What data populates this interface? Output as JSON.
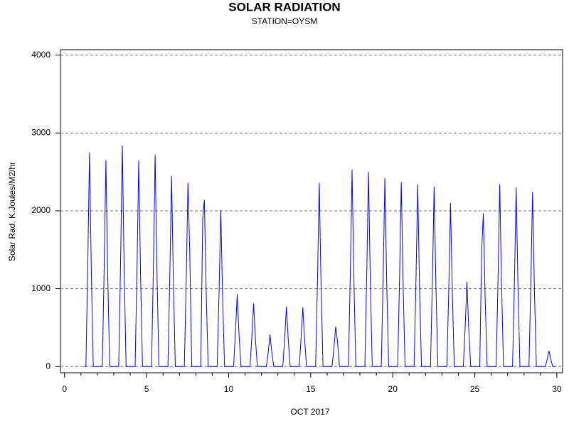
{
  "chart_data": {
    "type": "line",
    "title": "SOLAR RADIATION",
    "subtitle": "STATION=OYSM",
    "x_label": "OCT 2017",
    "y_label": "Solar Rad. K.Joules/M2/hr",
    "xlim": [
      -0.25,
      30.35
    ],
    "ylim": [
      -80,
      4070
    ],
    "xticks": [
      0,
      5,
      10,
      15,
      20,
      25,
      30
    ],
    "xminorticks": [
      1,
      2,
      3,
      4,
      6,
      7,
      8,
      9,
      11,
      12,
      13,
      14,
      16,
      17,
      18,
      19,
      21,
      22,
      23,
      24,
      26,
      27,
      28,
      29
    ],
    "yticks": [
      0,
      1000,
      2000,
      3000,
      4000
    ],
    "grid": true,
    "series": [
      {
        "name": "Solar Rad.",
        "color": "#0000ff",
        "x": [
          1.17,
          1.3,
          1.42,
          1.52,
          1.63,
          1.75,
          2.3,
          2.42,
          2.52,
          2.63,
          2.75,
          3.3,
          3.42,
          3.52,
          3.63,
          3.75,
          4.3,
          4.42,
          4.52,
          4.63,
          4.75,
          5.3,
          5.42,
          5.52,
          5.63,
          5.75,
          6.3,
          6.42,
          6.52,
          6.63,
          6.75,
          7.3,
          7.42,
          7.52,
          7.63,
          7.75,
          8.3,
          8.42,
          8.52,
          8.63,
          8.75,
          9.3,
          9.42,
          9.52,
          9.63,
          9.75,
          10.3,
          10.42,
          10.52,
          10.63,
          10.75,
          11.3,
          11.42,
          11.52,
          11.63,
          11.75,
          12.3,
          12.42,
          12.52,
          12.63,
          12.75,
          13.3,
          13.42,
          13.52,
          13.63,
          13.75,
          14.3,
          14.42,
          14.52,
          14.63,
          14.75,
          15.3,
          15.42,
          15.52,
          15.63,
          15.75,
          16.3,
          16.42,
          16.52,
          16.63,
          16.75,
          17.3,
          17.42,
          17.52,
          17.63,
          17.75,
          18.3,
          18.42,
          18.52,
          18.63,
          18.75,
          19.3,
          19.42,
          19.52,
          19.63,
          19.75,
          20.3,
          20.42,
          20.52,
          20.63,
          20.75,
          21.3,
          21.42,
          21.52,
          21.63,
          21.75,
          22.3,
          22.42,
          22.52,
          22.63,
          22.75,
          23.3,
          23.42,
          23.52,
          23.63,
          23.75,
          24.3,
          24.42,
          24.52,
          24.63,
          24.75,
          25.3,
          25.42,
          25.52,
          25.63,
          25.75,
          26.3,
          26.42,
          26.52,
          26.63,
          26.75,
          27.3,
          27.42,
          27.52,
          27.63,
          27.75,
          28.3,
          28.42,
          28.52,
          28.63,
          28.75,
          29.3,
          29.42,
          29.52,
          29.63,
          29.75,
          29.9
        ],
        "values": [
          0,
          0,
          1380,
          2750,
          1240,
          0,
          0,
          1330,
          2650,
          1190,
          0,
          0,
          1420,
          2840,
          1280,
          0,
          0,
          1330,
          2650,
          1190,
          0,
          0,
          1360,
          2720,
          1220,
          0,
          0,
          1230,
          2450,
          1100,
          0,
          0,
          1180,
          2360,
          1460,
          0,
          0,
          1900,
          2140,
          960,
          0,
          0,
          1000,
          2010,
          900,
          0,
          0,
          470,
          930,
          420,
          0,
          0,
          400,
          810,
          360,
          0,
          0,
          200,
          410,
          180,
          0,
          0,
          380,
          770,
          350,
          0,
          0,
          380,
          760,
          340,
          0,
          0,
          1180,
          2360,
          1060,
          0,
          0,
          250,
          510,
          330,
          0,
          0,
          1270,
          2530,
          1140,
          0,
          0,
          1250,
          2500,
          1130,
          0,
          0,
          1210,
          2420,
          1090,
          0,
          0,
          1190,
          2370,
          1070,
          0,
          0,
          1170,
          2340,
          1050,
          0,
          0,
          1160,
          2310,
          1040,
          0,
          0,
          1050,
          2100,
          950,
          0,
          0,
          540,
          1090,
          490,
          0,
          0,
          1500,
          1970,
          890,
          0,
          0,
          1170,
          2340,
          1050,
          0,
          0,
          1150,
          2300,
          1040,
          0,
          0,
          1120,
          2240,
          1010,
          0,
          0,
          100,
          200,
          90,
          0,
          0
        ]
      }
    ]
  }
}
